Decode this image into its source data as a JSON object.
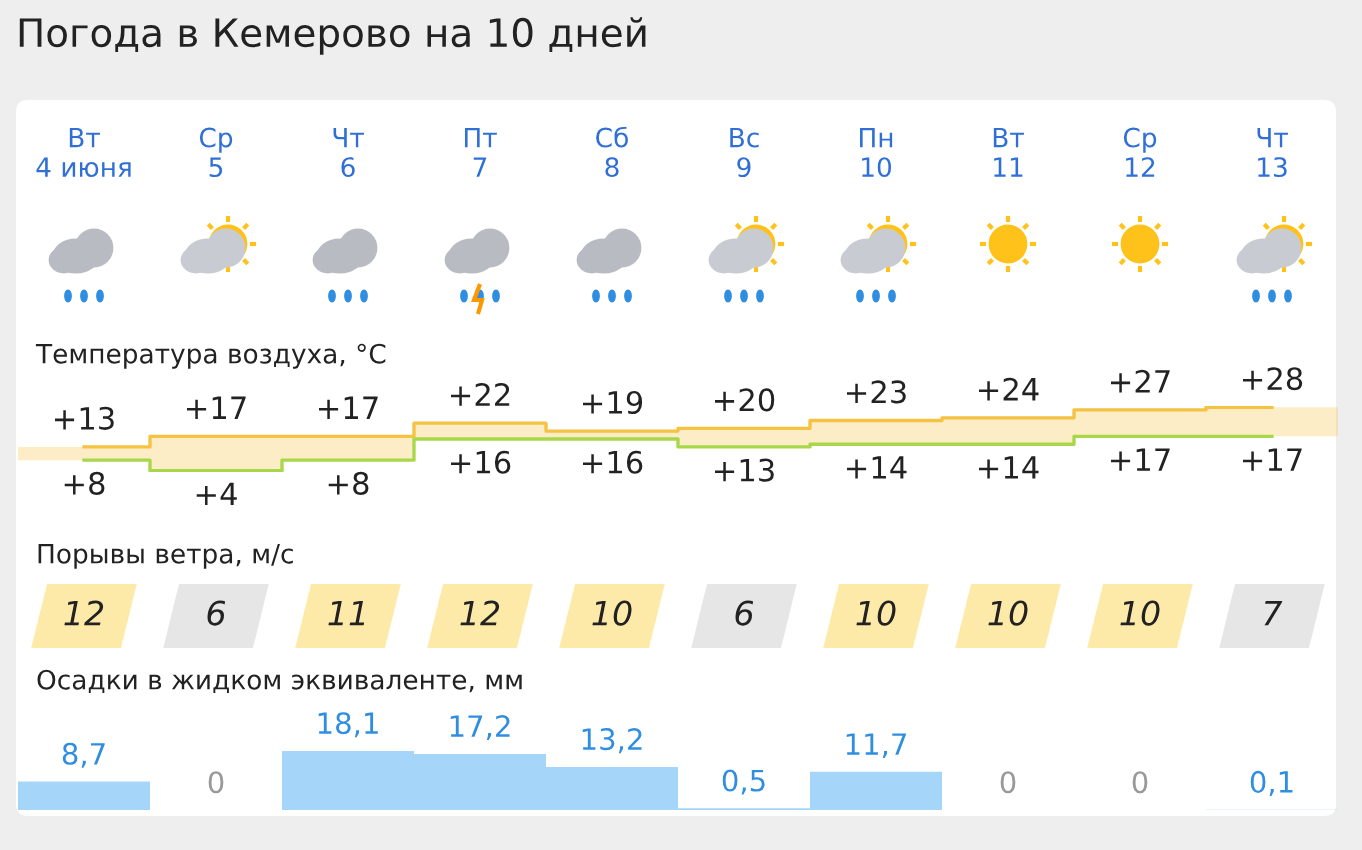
{
  "chart_data": [
    {
      "type": "step",
      "title": "Погода в Кемерово на 10 дней",
      "subtitle": "Температура воздуха, °C",
      "categories": [
        "Вт\n4 июня",
        "Ср\n5",
        "Чт\n6",
        "Пт\n7",
        "Сб\n8",
        "Вс\n9",
        "Пн\n10",
        "Вт\n11",
        "Ср\n12",
        "Чт\n13"
      ],
      "series": [
        {
          "color": "#f5c242",
          "values": [
            13,
            17,
            17,
            22,
            19,
            20,
            23,
            24,
            27,
            28
          ],
          "value_labels": [
            "+13",
            "+17",
            "+17",
            "+22",
            "+19",
            "+20",
            "+23",
            "+24",
            "+27",
            "+28"
          ]
        },
        {
          "color": "#a8d84a",
          "values": [
            8,
            4,
            8,
            16,
            16,
            13,
            14,
            14,
            17,
            17
          ],
          "value_labels": [
            "+8",
            "+4",
            "+8",
            "+16",
            "+16",
            "+13",
            "+14",
            "+14",
            "+17",
            "+17"
          ]
        }
      ]
    },
    {
      "type": "other",
      "title": "Порывы ветра, м/с",
      "values": [
        12,
        6,
        11,
        12,
        10,
        6,
        10,
        10,
        10,
        7
      ],
      "value_labels": [
        "12",
        "6",
        "11",
        "12",
        "10",
        "6",
        "10",
        "10",
        "10",
        "7"
      ],
      "colors": [
        "#fde9a8",
        "#e6e6e6",
        "#fde9a8",
        "#fde9a8",
        "#fde9a8",
        "#e6e6e6",
        "#fde9a8",
        "#fde9a8",
        "#fde9a8",
        "#e6e6e6"
      ]
    },
    {
      "type": "bar",
      "title": "Осадки в жидком эквиваленте, мм",
      "categories": [
        null,
        null,
        null,
        null,
        null,
        null,
        null,
        null,
        null,
        null
      ],
      "values": [
        8.7,
        0,
        18.1,
        17.2,
        13.2,
        0.5,
        11.7,
        0,
        0,
        0.1
      ],
      "value_labels": [
        "8,7",
        "0",
        "18,1",
        "17,2",
        "13,2",
        "0,5",
        "11,7",
        "0",
        "0",
        "0,1"
      ],
      "color": "#a6d5fa"
    }
  ]
}
